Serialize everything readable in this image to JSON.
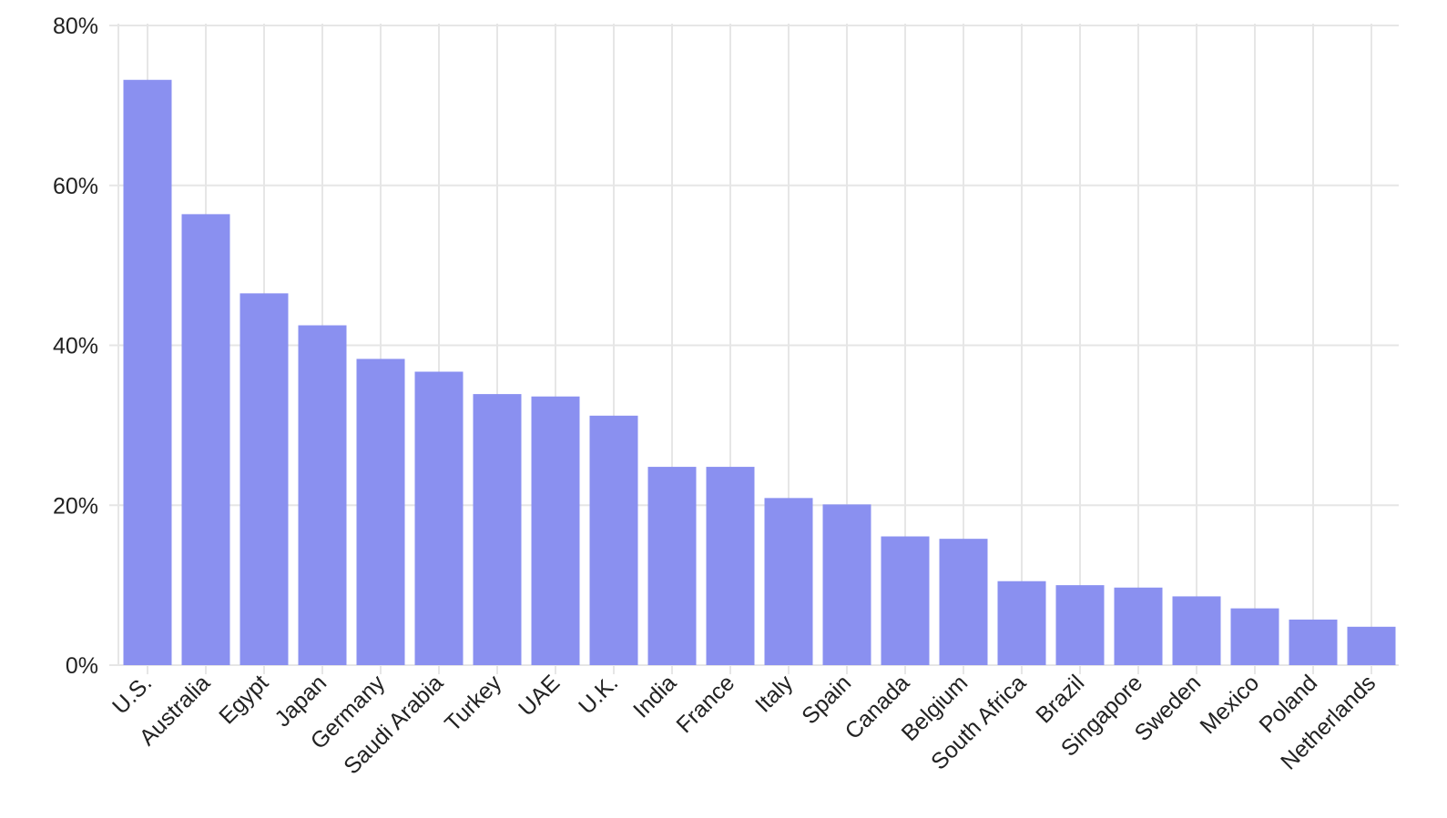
{
  "colors": {
    "bar": "#8a90f0",
    "grid": "#e6e6e6",
    "axis": "#d0d0d0",
    "text": "#222222"
  },
  "chart_data": {
    "type": "bar",
    "title": "",
    "xlabel": "",
    "ylabel": "",
    "ylim": [
      0,
      80
    ],
    "y_ticks": [
      0,
      20,
      40,
      60,
      80
    ],
    "y_tick_labels": [
      "0%",
      "20%",
      "40%",
      "60%",
      "80%"
    ],
    "grid": true,
    "categories": [
      "U.S.",
      "Australia",
      "Egypt",
      "Japan",
      "Germany",
      "Saudi Arabia",
      "Turkey",
      "UAE",
      "U.K.",
      "India",
      "France",
      "Italy",
      "Spain",
      "Canada",
      "Belgium",
      "South Africa",
      "Brazil",
      "Singapore",
      "Sweden",
      "Mexico",
      "Poland",
      "Netherlands"
    ],
    "values": [
      73.2,
      56.4,
      46.5,
      42.5,
      38.3,
      36.7,
      33.9,
      33.6,
      31.2,
      24.8,
      24.8,
      20.9,
      20.1,
      16.1,
      15.8,
      10.5,
      10.0,
      9.7,
      8.6,
      7.1,
      5.7,
      4.8
    ]
  }
}
